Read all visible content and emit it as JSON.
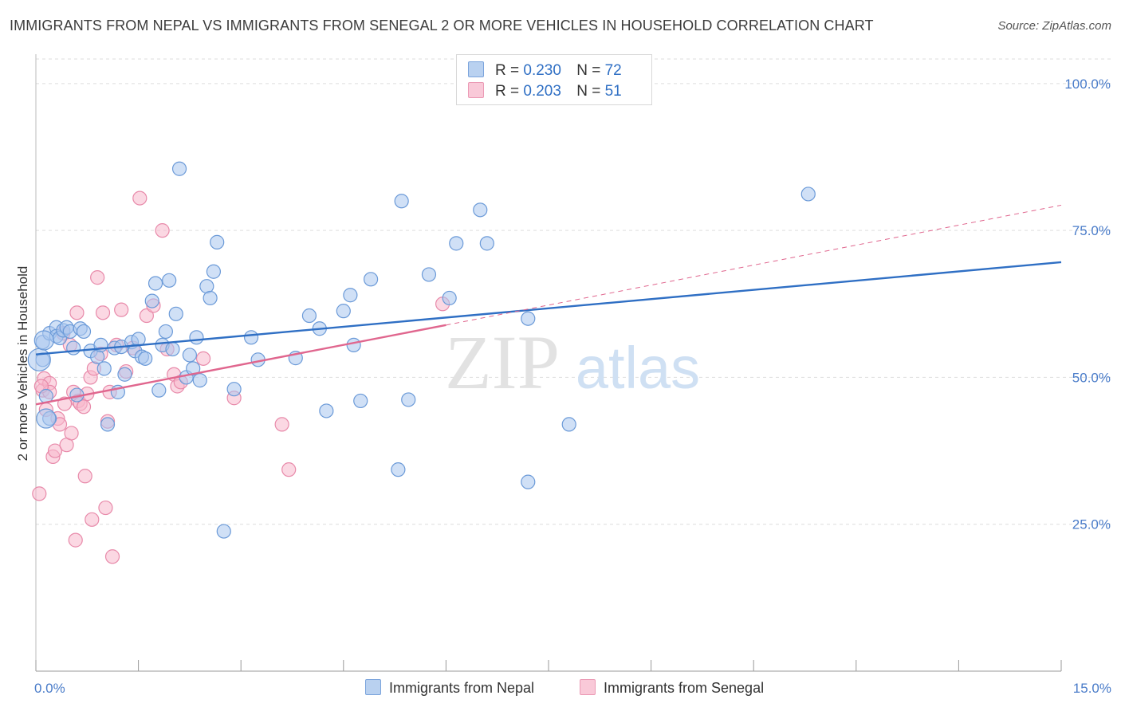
{
  "title": "IMMIGRANTS FROM NEPAL VS IMMIGRANTS FROM SENEGAL 2 OR MORE VEHICLES IN HOUSEHOLD CORRELATION CHART",
  "source": "Source: ZipAtlas.com",
  "watermark": {
    "zip": "ZIP",
    "atlas": "atlas"
  },
  "legend": {
    "nepal": {
      "r_label": "R =",
      "r_value": "0.230",
      "n_label": "N =",
      "n_value": "72"
    },
    "senegal": {
      "r_label": "R =",
      "r_value": "0.203",
      "n_label": "N =",
      "n_value": "51"
    }
  },
  "bottom_legend": {
    "nepal": "Immigrants from Nepal",
    "senegal": "Immigrants from Senegal"
  },
  "colors": {
    "nepal_fill": "#a9c7ee",
    "nepal_stroke": "#6b9ad8",
    "nepal_line": "#2f6fc4",
    "senegal_fill": "#f7b8cc",
    "senegal_stroke": "#e88aaa",
    "senegal_line": "#e0668e",
    "axis_text": "#4a7cc9",
    "grid": "#dddddd"
  },
  "chart_data": {
    "type": "scatter",
    "title": "IMMIGRANTS FROM NEPAL VS IMMIGRANTS FROM SENEGAL 2 OR MORE VEHICLES IN HOUSEHOLD CORRELATION CHART",
    "xlabel": "",
    "ylabel": "2 or more Vehicles in Household",
    "xlim": [
      0,
      15
    ],
    "ylim": [
      0,
      105
    ],
    "x_tick_labels": [
      "0.0%",
      "15.0%"
    ],
    "y_ticks": [
      25,
      50,
      75,
      100
    ],
    "y_tick_labels": [
      "25.0%",
      "50.0%",
      "75.0%",
      "100.0%"
    ],
    "series": [
      {
        "name": "Immigrants from Nepal",
        "trend": {
          "x0": 0,
          "y0": 53.9,
          "x1": 15,
          "y1": 69.6
        },
        "points": [
          [
            0.1,
            53.0
          ],
          [
            0.1,
            56.0
          ],
          [
            0.2,
            57.5
          ],
          [
            0.2,
            43.0
          ],
          [
            0.3,
            58.5
          ],
          [
            0.3,
            57.0
          ],
          [
            0.35,
            56.7
          ],
          [
            0.4,
            58.0
          ],
          [
            0.45,
            58.5
          ],
          [
            0.5,
            57.8
          ],
          [
            0.55,
            55.0
          ],
          [
            0.6,
            47.0
          ],
          [
            0.65,
            58.3
          ],
          [
            0.7,
            57.8
          ],
          [
            0.8,
            54.5
          ],
          [
            0.9,
            53.5
          ],
          [
            0.95,
            55.5
          ],
          [
            1.0,
            51.5
          ],
          [
            1.05,
            42.0
          ],
          [
            1.15,
            55.0
          ],
          [
            1.2,
            47.5
          ],
          [
            1.25,
            55.2
          ],
          [
            1.3,
            50.5
          ],
          [
            1.4,
            56.0
          ],
          [
            1.45,
            54.5
          ],
          [
            1.5,
            56.5
          ],
          [
            1.55,
            53.5
          ],
          [
            1.6,
            53.2
          ],
          [
            1.7,
            63.0
          ],
          [
            1.75,
            66.0
          ],
          [
            1.8,
            47.8
          ],
          [
            1.85,
            55.5
          ],
          [
            1.9,
            57.8
          ],
          [
            1.95,
            66.5
          ],
          [
            2.0,
            54.8
          ],
          [
            2.05,
            60.8
          ],
          [
            2.1,
            85.5
          ],
          [
            2.2,
            50.0
          ],
          [
            2.25,
            53.8
          ],
          [
            2.3,
            51.5
          ],
          [
            2.35,
            56.8
          ],
          [
            2.4,
            49.5
          ],
          [
            2.5,
            65.5
          ],
          [
            2.55,
            63.5
          ],
          [
            2.6,
            68.0
          ],
          [
            2.65,
            73.0
          ],
          [
            2.75,
            23.8
          ],
          [
            2.9,
            48.0
          ],
          [
            3.15,
            56.8
          ],
          [
            3.25,
            53.0
          ],
          [
            3.8,
            53.3
          ],
          [
            4.0,
            60.5
          ],
          [
            4.15,
            58.3
          ],
          [
            4.25,
            44.3
          ],
          [
            4.5,
            61.3
          ],
          [
            4.6,
            64.0
          ],
          [
            4.65,
            55.5
          ],
          [
            4.75,
            46.0
          ],
          [
            4.9,
            66.7
          ],
          [
            5.3,
            34.3
          ],
          [
            5.35,
            80.0
          ],
          [
            5.45,
            46.2
          ],
          [
            5.75,
            67.5
          ],
          [
            6.05,
            63.5
          ],
          [
            6.15,
            72.8
          ],
          [
            6.5,
            78.5
          ],
          [
            6.6,
            72.8
          ],
          [
            7.2,
            60.0
          ],
          [
            7.2,
            32.2
          ],
          [
            7.8,
            42.0
          ],
          [
            11.3,
            81.2
          ],
          [
            0.15,
            46.8
          ]
        ]
      },
      {
        "name": "Immigrants from Senegal",
        "trend": {
          "x0": 0,
          "y0": 45.4,
          "x1": 6,
          "y1": 58.9
        },
        "trend_extension": {
          "x0": 6,
          "y0": 58.9,
          "x1": 15,
          "y1": 79.3
        },
        "points": [
          [
            0.05,
            30.2
          ],
          [
            0.1,
            47.8
          ],
          [
            0.12,
            49.8
          ],
          [
            0.15,
            44.5
          ],
          [
            0.2,
            49.0
          ],
          [
            0.2,
            47.5
          ],
          [
            0.25,
            36.5
          ],
          [
            0.28,
            37.5
          ],
          [
            0.32,
            43.0
          ],
          [
            0.35,
            42.0
          ],
          [
            0.4,
            57.5
          ],
          [
            0.42,
            45.5
          ],
          [
            0.45,
            38.5
          ],
          [
            0.5,
            55.5
          ],
          [
            0.52,
            40.5
          ],
          [
            0.55,
            47.5
          ],
          [
            0.58,
            22.3
          ],
          [
            0.6,
            61.0
          ],
          [
            0.62,
            46.0
          ],
          [
            0.65,
            45.5
          ],
          [
            0.7,
            45.0
          ],
          [
            0.72,
            33.2
          ],
          [
            0.75,
            47.2
          ],
          [
            0.8,
            50.0
          ],
          [
            0.82,
            25.8
          ],
          [
            0.85,
            51.5
          ],
          [
            0.9,
            67.0
          ],
          [
            0.95,
            54.0
          ],
          [
            0.98,
            61.0
          ],
          [
            1.02,
            27.8
          ],
          [
            1.05,
            42.5
          ],
          [
            1.08,
            47.5
          ],
          [
            1.12,
            19.5
          ],
          [
            1.18,
            55.5
          ],
          [
            1.25,
            61.5
          ],
          [
            1.32,
            51.0
          ],
          [
            1.42,
            55.0
          ],
          [
            1.52,
            80.5
          ],
          [
            1.62,
            60.5
          ],
          [
            1.72,
            62.2
          ],
          [
            1.85,
            75.0
          ],
          [
            1.92,
            54.8
          ],
          [
            2.02,
            50.5
          ],
          [
            2.07,
            48.5
          ],
          [
            2.12,
            49.2
          ],
          [
            2.45,
            53.2
          ],
          [
            2.9,
            46.5
          ],
          [
            3.6,
            42.0
          ],
          [
            3.7,
            34.3
          ],
          [
            5.95,
            62.5
          ],
          [
            0.08,
            48.5
          ]
        ]
      }
    ]
  }
}
